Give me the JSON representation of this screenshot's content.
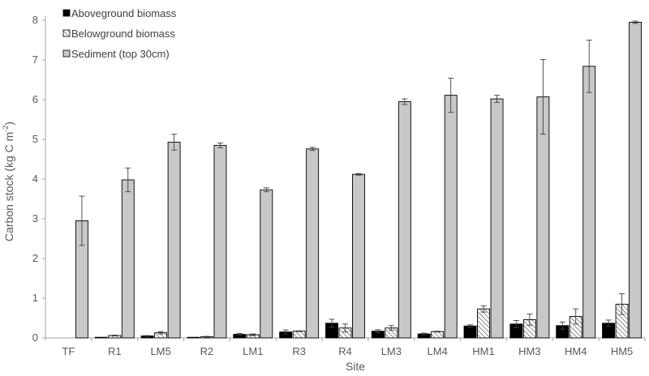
{
  "chart_data": {
    "type": "bar",
    "title": "",
    "xlabel": "Site",
    "ylabel": "Carbon stock (kg C m",
    "ylabel_sup": "-2",
    "ylabel_close": ")",
    "ylim": [
      0,
      8
    ],
    "yticks": [
      0,
      1,
      2,
      3,
      4,
      5,
      6,
      7,
      8
    ],
    "grid": false,
    "legend_position": "top-left",
    "categories": [
      "TF",
      "R1",
      "LM5",
      "R2",
      "LM1",
      "R3",
      "R4",
      "LM3",
      "LM4",
      "HM1",
      "HM3",
      "HM4",
      "HM5"
    ],
    "series": [
      {
        "name": "Aboveground biomass",
        "fill": "solid-black",
        "values": [
          0,
          0.01,
          0.05,
          0.01,
          0.09,
          0.15,
          0.37,
          0.17,
          0.1,
          0.3,
          0.35,
          0.31,
          0.37
        ],
        "errors": [
          0,
          0,
          0.01,
          0,
          0.02,
          0.05,
          0.1,
          0.04,
          0.02,
          0.03,
          0.09,
          0.09,
          0.08
        ]
      },
      {
        "name": "Belowground biomass",
        "fill": "hatched",
        "values": [
          0,
          0.06,
          0.13,
          0.03,
          0.08,
          0.17,
          0.25,
          0.25,
          0.16,
          0.73,
          0.46,
          0.54,
          0.85
        ],
        "errors": [
          0,
          0.01,
          0.03,
          0.01,
          0.02,
          0.01,
          0.1,
          0.06,
          0.01,
          0.08,
          0.14,
          0.19,
          0.26
        ]
      },
      {
        "name": "Sediment (top 30cm)",
        "fill": "light-gray",
        "values": [
          2.95,
          3.98,
          4.93,
          4.85,
          3.73,
          4.76,
          4.12,
          5.95,
          6.11,
          6.02,
          6.07,
          6.84,
          7.95
        ],
        "errors": [
          0.62,
          0.3,
          0.2,
          0.06,
          0.05,
          0.04,
          0.02,
          0.07,
          0.43,
          0.09,
          0.94,
          0.66,
          0.03
        ]
      }
    ],
    "colors": {
      "aboveground": "#000000",
      "belowground_hatch": "#7f7f7f",
      "sediment": "#c8c8c8",
      "axis": "#a6a6a6",
      "text": "#595959"
    }
  }
}
